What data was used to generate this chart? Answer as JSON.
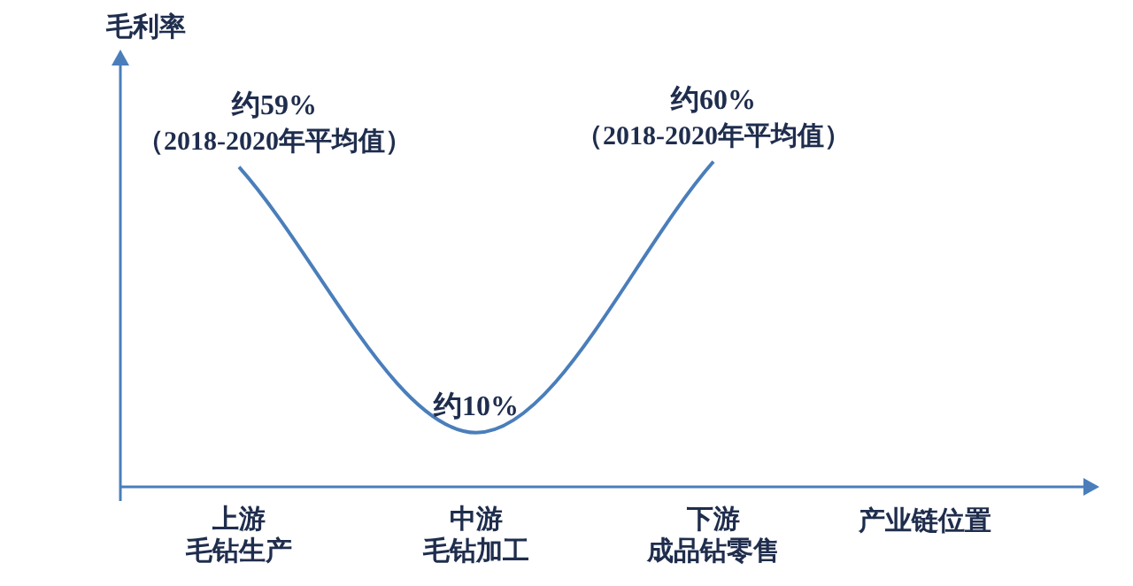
{
  "chart_data": {
    "type": "line",
    "categories": [
      "上游毛钻生产",
      "中游毛钻加工",
      "下游成品钻零售"
    ],
    "values": [
      59,
      10,
      60
    ],
    "value_labels": [
      "约59%\n（2018-2020年平均值）",
      "约10%",
      "约60%\n（2018-2020年平均值）"
    ],
    "color": "#4a7ebb",
    "ylabel": "毛利率",
    "xlabel": "产业链位置",
    "tick_labels": "x",
    "grid": false,
    "legend": false,
    "marker": "none",
    "line_style": "solid"
  }
}
